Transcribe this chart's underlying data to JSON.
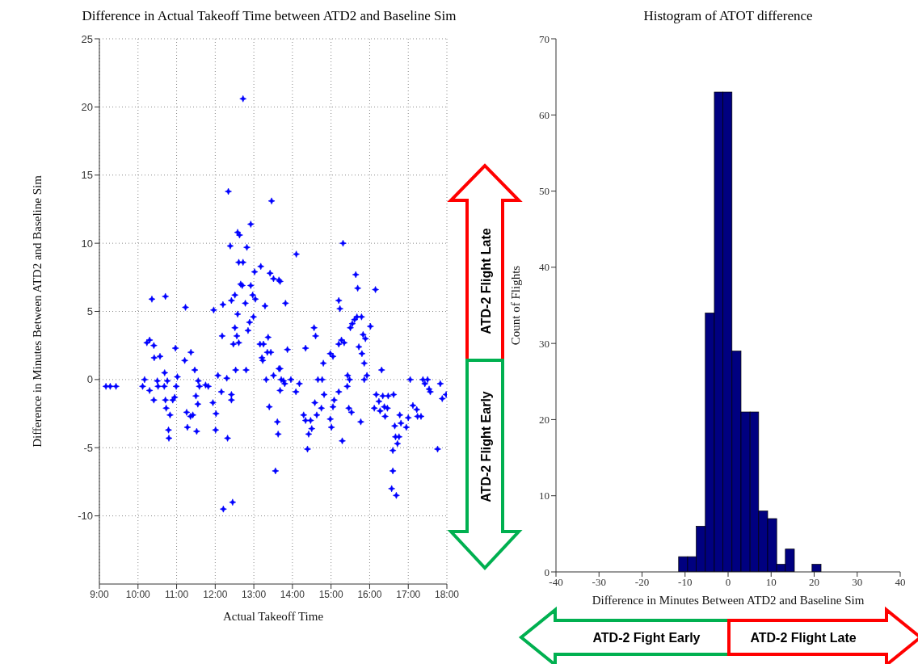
{
  "chart_data": [
    {
      "type": "scatter",
      "title": "Difference in Actual Takeoff Time between ATD2 and Baseline Sim",
      "xlabel": "Actual Takeoff Time",
      "ylabel": "Difference in Minutes Between ATD2 and Baseline Sim",
      "color": "#0000ff",
      "marker": "star",
      "grid": true,
      "xlim": [
        9,
        18
      ],
      "xticks": [
        {
          "value": 9,
          "label": "9:00"
        },
        {
          "value": 10,
          "label": "10:00"
        },
        {
          "value": 11,
          "label": "11:00"
        },
        {
          "value": 12,
          "label": "12:00"
        },
        {
          "value": 13,
          "label": "13:00"
        },
        {
          "value": 14,
          "label": "14:00"
        },
        {
          "value": 15,
          "label": "15:00"
        },
        {
          "value": 16,
          "label": "16:00"
        },
        {
          "value": 17,
          "label": "17:00"
        },
        {
          "value": 18,
          "label": "18:00"
        }
      ],
      "ylim": [
        -15,
        25
      ],
      "yticks": [
        -10,
        -5,
        0,
        5,
        10,
        15,
        20,
        25
      ],
      "annotations": [
        "ATD-2 Flight Late",
        "ATD-2 Flight Early"
      ],
      "x": [
        9.17,
        9.28,
        9.43,
        10.12,
        10.17,
        10.23,
        10.3,
        10.41,
        10.36,
        10.71,
        10.3,
        10.42,
        10.57,
        10.41,
        10.5,
        10.52,
        10.68,
        10.69,
        10.76,
        10.71,
        10.73,
        10.83,
        10.79,
        10.8,
        10.9,
        10.95,
        10.97,
        10.99,
        11.02,
        11.21,
        11.23,
        11.37,
        11.26,
        11.28,
        11.36,
        11.42,
        11.47,
        11.5,
        11.52,
        11.55,
        11.56,
        11.59,
        11.75,
        11.82,
        11.94,
        11.96,
        12.02,
        12.01,
        12.07,
        12.16,
        12.18,
        12.2,
        12.21,
        12.3,
        12.32,
        12.34,
        12.39,
        12.42,
        12.42,
        12.42,
        12.45,
        12.47,
        12.51,
        12.51,
        12.53,
        12.56,
        12.58,
        12.58,
        12.63,
        12.61,
        12.61,
        12.72,
        12.66,
        12.7,
        12.72,
        12.78,
        12.8,
        12.82,
        12.85,
        12.89,
        12.92,
        12.92,
        12.97,
        12.99,
        13.02,
        13.04,
        13.18,
        13.16,
        13.23,
        13.25,
        13.21,
        13.29,
        13.32,
        13.35,
        13.37,
        13.42,
        13.4,
        13.46,
        13.44,
        13.51,
        13.51,
        13.56,
        13.61,
        13.63,
        13.65,
        13.65,
        13.68,
        13.82,
        13.87,
        13.68,
        13.71,
        13.77,
        13.8,
        13.96,
        13.68,
        14.09,
        14.18,
        14.1,
        14.34,
        14.29,
        14.34,
        14.42,
        14.39,
        14.47,
        14.5,
        14.56,
        14.6,
        14.58,
        14.63,
        14.66,
        14.77,
        14.75,
        14.8,
        14.82,
        14.98,
        15.05,
        14.98,
        15.01,
        15.05,
        15.08,
        15.2,
        15.23,
        15.2,
        15.27,
        15.34,
        15.2,
        15.29,
        15.31,
        15.42,
        15.43,
        15.48,
        15.46,
        15.53,
        15.5,
        15.55,
        15.61,
        15.67,
        15.64,
        15.69,
        15.72,
        15.79,
        15.8,
        15.77,
        15.83,
        15.86,
        15.86,
        15.89,
        15.93,
        16.02,
        16.15,
        16.12,
        16.17,
        16.24,
        16.27,
        16.31,
        16.34,
        16.38,
        16.4,
        16.46,
        16.48,
        16.62,
        16.6,
        16.6,
        16.57,
        16.69,
        16.65,
        16.67,
        16.72,
        16.76,
        16.78,
        16.81,
        16.95,
        17.0,
        17.05,
        17.12,
        17.22,
        17.24,
        17.33,
        17.38,
        17.43,
        17.5,
        17.54,
        17.57,
        17.76,
        17.83,
        17.88,
        17.98
      ],
      "values": [
        -0.5,
        -0.5,
        -0.5,
        -0.5,
        0,
        2.7,
        2.9,
        2.5,
        5.9,
        6.1,
        -0.8,
        1.6,
        1.7,
        -1.5,
        -0.1,
        -0.5,
        -0.5,
        0.5,
        -0.1,
        -1.5,
        -2.1,
        -2.6,
        -3.7,
        -4.3,
        -1.5,
        -1.3,
        2.3,
        -0.5,
        0.2,
        1.4,
        5.3,
        2.0,
        -2.4,
        -3.5,
        -2.7,
        -2.6,
        0.7,
        -1.2,
        -3.8,
        -1.8,
        -0.1,
        -0.5,
        -0.4,
        -0.5,
        -1.7,
        5.1,
        -2.5,
        -3.7,
        0.3,
        -0.9,
        3.2,
        5.5,
        -9.5,
        0.1,
        -4.3,
        13.8,
        9.8,
        5.8,
        -1.1,
        -1.5,
        -9.0,
        2.6,
        6.2,
        3.8,
        0.7,
        3.2,
        4.8,
        10.8,
        10.6,
        2.7,
        8.6,
        8.6,
        7.0,
        6.9,
        20.6,
        5.6,
        0.7,
        9.7,
        3.6,
        4.2,
        11.4,
        6.9,
        6.2,
        4.6,
        7.9,
        5.9,
        8.3,
        2.6,
        1.4,
        2.6,
        1.6,
        5.4,
        0,
        2.0,
        3.1,
        7.8,
        -2.0,
        13.1,
        2.0,
        0.3,
        7.4,
        -6.7,
        -3.1,
        -4.0,
        0.8,
        7.3,
        7.2,
        5.6,
        2.2,
        0.8,
        0,
        -0.1,
        -0.3,
        0,
        -0.8,
        -0.9,
        -0.3,
        9.2,
        2.3,
        -2.6,
        -3.0,
        -4.0,
        -5.1,
        -3.0,
        -3.6,
        3.8,
        3.2,
        -1.7,
        -2.6,
        0,
        0,
        -2.1,
        1.2,
        -1.1,
        1.9,
        1.7,
        -2.9,
        -3.5,
        -2.0,
        -1.5,
        5.8,
        5.2,
        2.6,
        2.9,
        2.7,
        -0.9,
        -4.5,
        10.0,
        -0.5,
        0.3,
        0,
        -2.1,
        -2.4,
        3.8,
        4.1,
        4.4,
        4.6,
        7.7,
        6.7,
        2.4,
        4.6,
        1.9,
        -3.1,
        3.3,
        1.2,
        0,
        3.0,
        0.3,
        3.9,
        6.6,
        -2.1,
        -1.1,
        -1.6,
        -2.3,
        0.7,
        -1.2,
        -2.0,
        -2.7,
        -2.1,
        -1.2,
        -1.1,
        -5.2,
        -6.7,
        -8.0,
        -8.5,
        -3.4,
        -4.2,
        -4.7,
        -4.2,
        -2.6,
        -3.2,
        -3.5,
        -2.8,
        0,
        -1.9,
        -2.2,
        -2.7,
        -2.7,
        0,
        -0.3,
        0,
        -0.7,
        -0.9,
        -5.1,
        -0.3,
        -1.4,
        -1.1
      ]
    },
    {
      "type": "histogram",
      "title": "Histogram of ATOT difference",
      "xlabel": "Difference in Minutes Between ATD2 and Baseline Sim",
      "ylabel": "Count of Flights",
      "color": "#000080",
      "grid": false,
      "xlim": [
        -40,
        40
      ],
      "xticks": [
        -40,
        -30,
        -20,
        -10,
        0,
        10,
        20,
        30,
        40
      ],
      "ylim": [
        0,
        70
      ],
      "yticks": [
        0,
        10,
        20,
        30,
        40,
        50,
        60,
        70
      ],
      "annotations": [
        "ATD-2 Fight Early",
        "ATD-2 Flight Late"
      ],
      "bins": [
        -11.5,
        -9.4,
        -7.4,
        -5.3,
        -3.2,
        -1.2,
        0.9,
        3.0,
        5.1,
        7.1,
        9.2,
        11.3,
        13.3,
        15.4,
        19.5,
        21.6
      ],
      "values": [
        2,
        2,
        6,
        34,
        63,
        63,
        29,
        21,
        21,
        8,
        7,
        1,
        3,
        0,
        1
      ]
    }
  ]
}
